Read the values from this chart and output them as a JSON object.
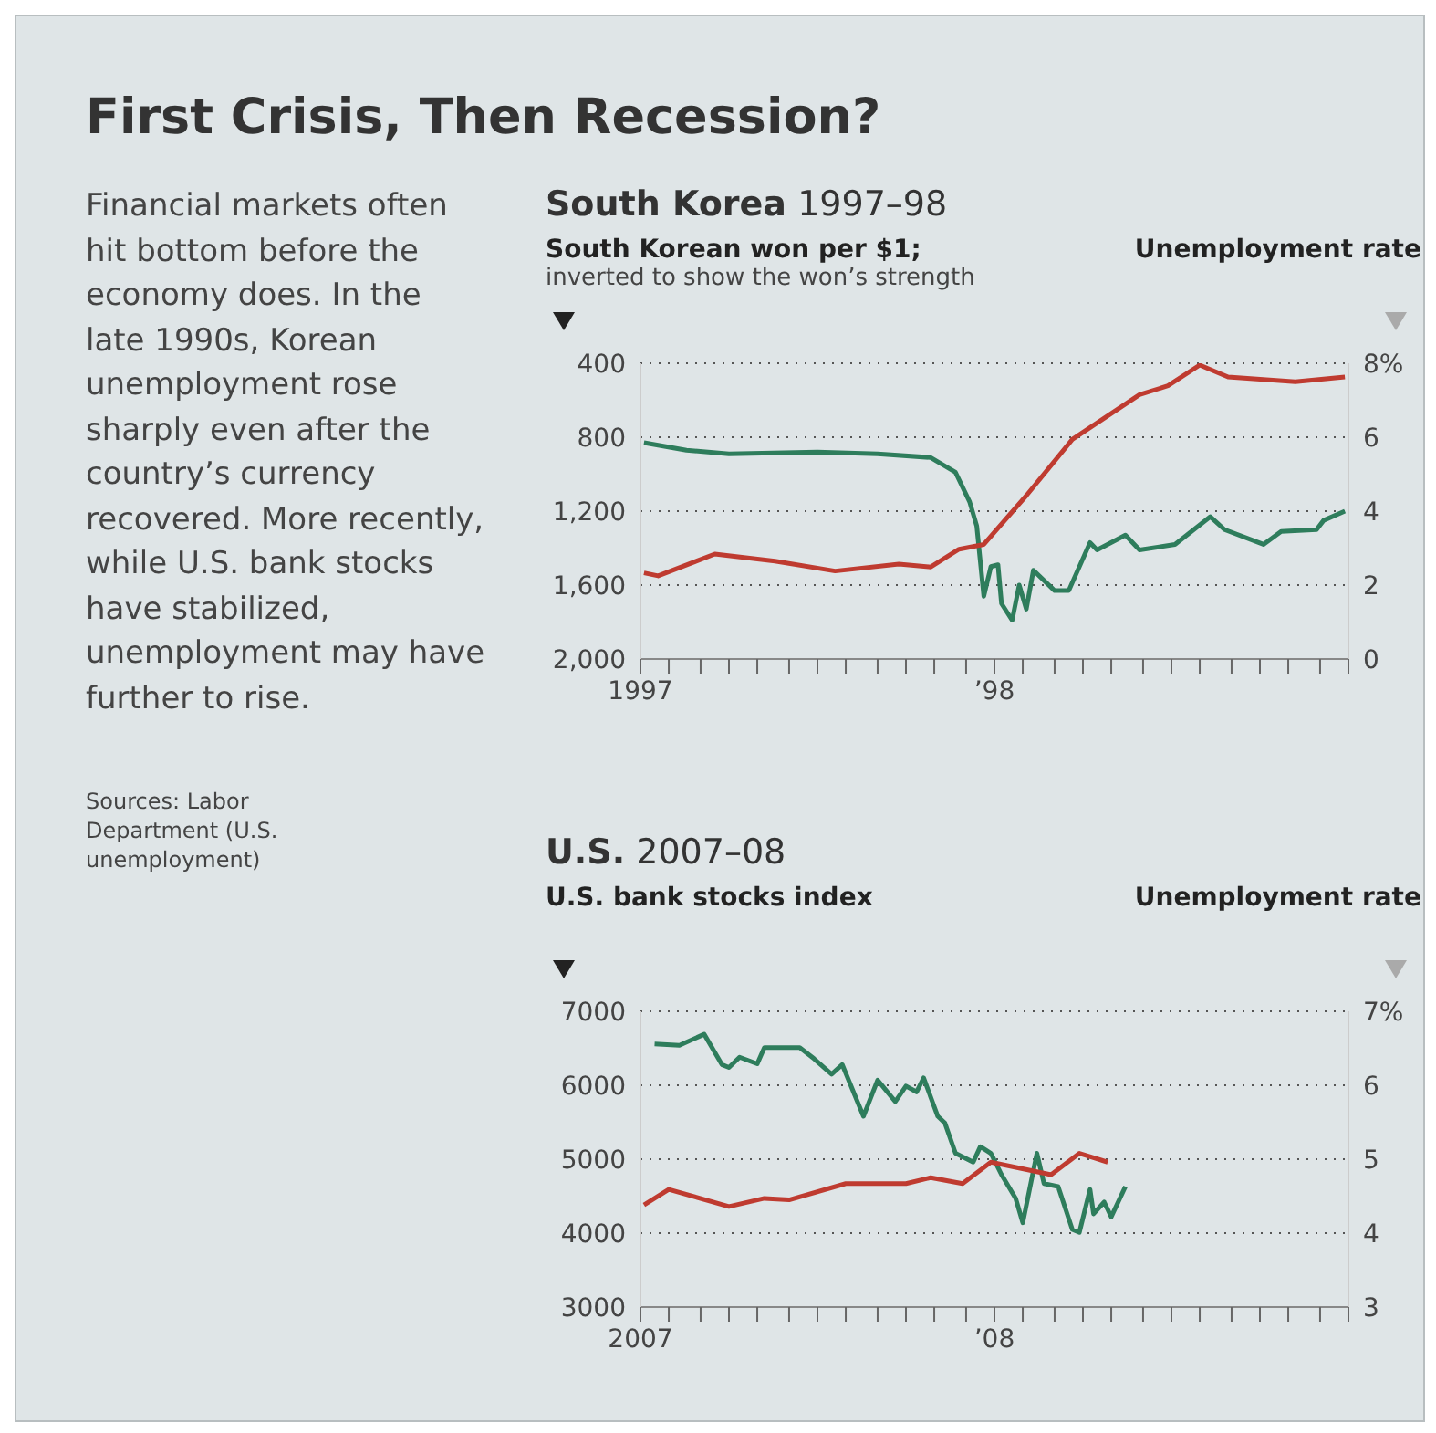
{
  "chart_data": [
    {
      "type": "other",
      "title": "First Crisis, Then Recession?",
      "annotations": [
        "Financial markets often hit bottom before the economy does. In the late 1990s, Korean unemployment rose sharply even after the country’s currency recovered. More recently, while U.S. bank stocks have stabilized, unemployment may have further to rise.",
        "Sources: Labor Department (U.S. unemployment)"
      ]
    },
    {
      "type": "line",
      "title": "South Korea",
      "subtitle": "1997–98",
      "ylabel": "South Korean won per $1;",
      "annotations": [
        "inverted to show the won’s strength"
      ],
      "y2label": "Unemployment rate",
      "grid": "y",
      "xlim": [
        1997,
        1999
      ],
      "xticks": [
        {
          "value": 1997,
          "label": "1997"
        },
        {
          "value": 1997.08,
          "label": null
        },
        {
          "value": 1997.17,
          "label": null
        },
        {
          "value": 1997.25,
          "label": null
        },
        {
          "value": 1997.33,
          "label": null
        },
        {
          "value": 1997.42,
          "label": null
        },
        {
          "value": 1997.5,
          "label": null
        },
        {
          "value": 1997.58,
          "label": null
        },
        {
          "value": 1997.67,
          "label": null
        },
        {
          "value": 1997.75,
          "label": null
        },
        {
          "value": 1997.83,
          "label": null
        },
        {
          "value": 1997.92,
          "label": null
        },
        {
          "value": 1998,
          "label": "’98"
        },
        {
          "value": 1998.08,
          "label": null
        },
        {
          "value": 1998.17,
          "label": null
        },
        {
          "value": 1998.25,
          "label": null
        },
        {
          "value": 1998.33,
          "label": null
        },
        {
          "value": 1998.42,
          "label": null
        },
        {
          "value": 1998.5,
          "label": null
        },
        {
          "value": 1998.58,
          "label": null
        },
        {
          "value": 1998.67,
          "label": null
        },
        {
          "value": 1998.75,
          "label": null
        },
        {
          "value": 1998.83,
          "label": null
        },
        {
          "value": 1998.92,
          "label": null
        },
        {
          "value": 1999,
          "label": null
        }
      ],
      "ylim": [
        2000,
        400
      ],
      "yticks": [
        400,
        800,
        {
          "value": 1200,
          "label": "1,200"
        },
        {
          "value": 1600,
          "label": "1,600"
        },
        {
          "value": 2000,
          "label": "2,000"
        }
      ],
      "y2lim": [
        0,
        8
      ],
      "y2ticks": [
        0,
        2,
        4,
        6,
        {
          "value": 8,
          "label": "8%"
        }
      ],
      "series": [
        {
          "color": "#2e7d5c",
          "x": [
            1997.01,
            1997.13,
            1997.25,
            1997.5,
            1997.67,
            1997.82,
            1997.89,
            1997.93,
            1997.95,
            1997.97,
            1997.99,
            1998.01,
            1998.02,
            1998.05,
            1998.07,
            1998.09,
            1998.11,
            1998.17,
            1998.21,
            1998.27,
            1998.29,
            1998.37,
            1998.41,
            1998.51,
            1998.61,
            1998.65,
            1998.76,
            1998.81,
            1998.91,
            1998.93,
            1998.99
          ],
          "values": [
            830,
            870,
            890,
            880,
            890,
            910,
            990,
            1150,
            1280,
            1660,
            1500,
            1490,
            1700,
            1790,
            1600,
            1730,
            1520,
            1630,
            1630,
            1370,
            1410,
            1330,
            1410,
            1380,
            1230,
            1300,
            1380,
            1310,
            1300,
            1250,
            1200
          ]
        },
        {
          "color": "#bf3b30",
          "axis": "y2",
          "x": [
            1997.01,
            1997.05,
            1997.21,
            1997.38,
            1997.55,
            1997.73,
            1997.82,
            1997.9,
            1997.97,
            1998.09,
            1998.22,
            1998.41,
            1998.49,
            1998.58,
            1998.66,
            1998.85,
            1998.99
          ],
          "values": [
            2.33,
            2.25,
            2.84,
            2.65,
            2.38,
            2.57,
            2.49,
            2.97,
            3.1,
            4.42,
            5.94,
            7.15,
            7.39,
            7.95,
            7.63,
            7.5,
            7.63
          ]
        }
      ]
    },
    {
      "type": "line",
      "title": "U.S.",
      "subtitle": "2007–08",
      "ylabel": "U.S. bank stocks index",
      "y2label": "Unemployment rate",
      "grid": "y",
      "xlim": [
        2007,
        2009
      ],
      "xticks": [
        {
          "value": 2007,
          "label": "2007"
        },
        {
          "value": 2007.08,
          "label": null
        },
        {
          "value": 2007.17,
          "label": null
        },
        {
          "value": 2007.25,
          "label": null
        },
        {
          "value": 2007.33,
          "label": null
        },
        {
          "value": 2007.42,
          "label": null
        },
        {
          "value": 2007.5,
          "label": null
        },
        {
          "value": 2007.58,
          "label": null
        },
        {
          "value": 2007.67,
          "label": null
        },
        {
          "value": 2007.75,
          "label": null
        },
        {
          "value": 2007.83,
          "label": null
        },
        {
          "value": 2007.92,
          "label": null
        },
        {
          "value": 2008,
          "label": "’08"
        },
        {
          "value": 2008.08,
          "label": null
        },
        {
          "value": 2008.17,
          "label": null
        },
        {
          "value": 2008.25,
          "label": null
        },
        {
          "value": 2008.33,
          "label": null
        },
        {
          "value": 2008.42,
          "label": null
        },
        {
          "value": 2008.5,
          "label": null
        },
        {
          "value": 2008.58,
          "label": null
        },
        {
          "value": 2008.67,
          "label": null
        },
        {
          "value": 2008.75,
          "label": null
        },
        {
          "value": 2008.83,
          "label": null
        },
        {
          "value": 2008.92,
          "label": null
        },
        {
          "value": 2009,
          "label": null
        }
      ],
      "ylim": [
        3000,
        7000
      ],
      "yticks": [
        3000,
        4000,
        5000,
        6000,
        7000
      ],
      "y2lim": [
        3,
        7
      ],
      "y2ticks": [
        3,
        4,
        5,
        6,
        {
          "value": 7,
          "label": "7%"
        }
      ],
      "series": [
        {
          "color": "#2e7d5c",
          "x": [
            2007.04,
            2007.11,
            2007.18,
            2007.23,
            2007.25,
            2007.28,
            2007.33,
            2007.35,
            2007.45,
            2007.49,
            2007.54,
            2007.57,
            2007.63,
            2007.67,
            2007.72,
            2007.75,
            2007.78,
            2007.8,
            2007.84,
            2007.86,
            2007.89,
            2007.94,
            2007.96,
            2007.99,
            2008.02,
            2008.06,
            2008.08,
            2008.12,
            2008.14,
            2008.18,
            2008.22,
            2008.24,
            2008.27,
            2008.28,
            2008.31,
            2008.33,
            2008.37
          ],
          "values": [
            6560,
            6540,
            6690,
            6280,
            6240,
            6380,
            6290,
            6510,
            6510,
            6360,
            6150,
            6280,
            5580,
            6070,
            5780,
            5990,
            5910,
            6100,
            5580,
            5490,
            5080,
            4960,
            5170,
            5080,
            4790,
            4470,
            4140,
            5080,
            4670,
            4630,
            4050,
            4010,
            4590,
            4260,
            4420,
            4220,
            4630
          ]
        },
        {
          "color": "#bf3b30",
          "axis": "y2",
          "x": [
            2007.01,
            2007.08,
            2007.25,
            2007.35,
            2007.42,
            2007.58,
            2007.75,
            2007.82,
            2007.91,
            2007.99,
            2008.07,
            2008.16,
            2008.24,
            2008.32
          ],
          "values": [
            4.38,
            4.59,
            4.36,
            4.47,
            4.45,
            4.67,
            4.67,
            4.75,
            4.67,
            4.96,
            4.88,
            4.79,
            5.08,
            4.96
          ]
        }
      ]
    }
  ]
}
